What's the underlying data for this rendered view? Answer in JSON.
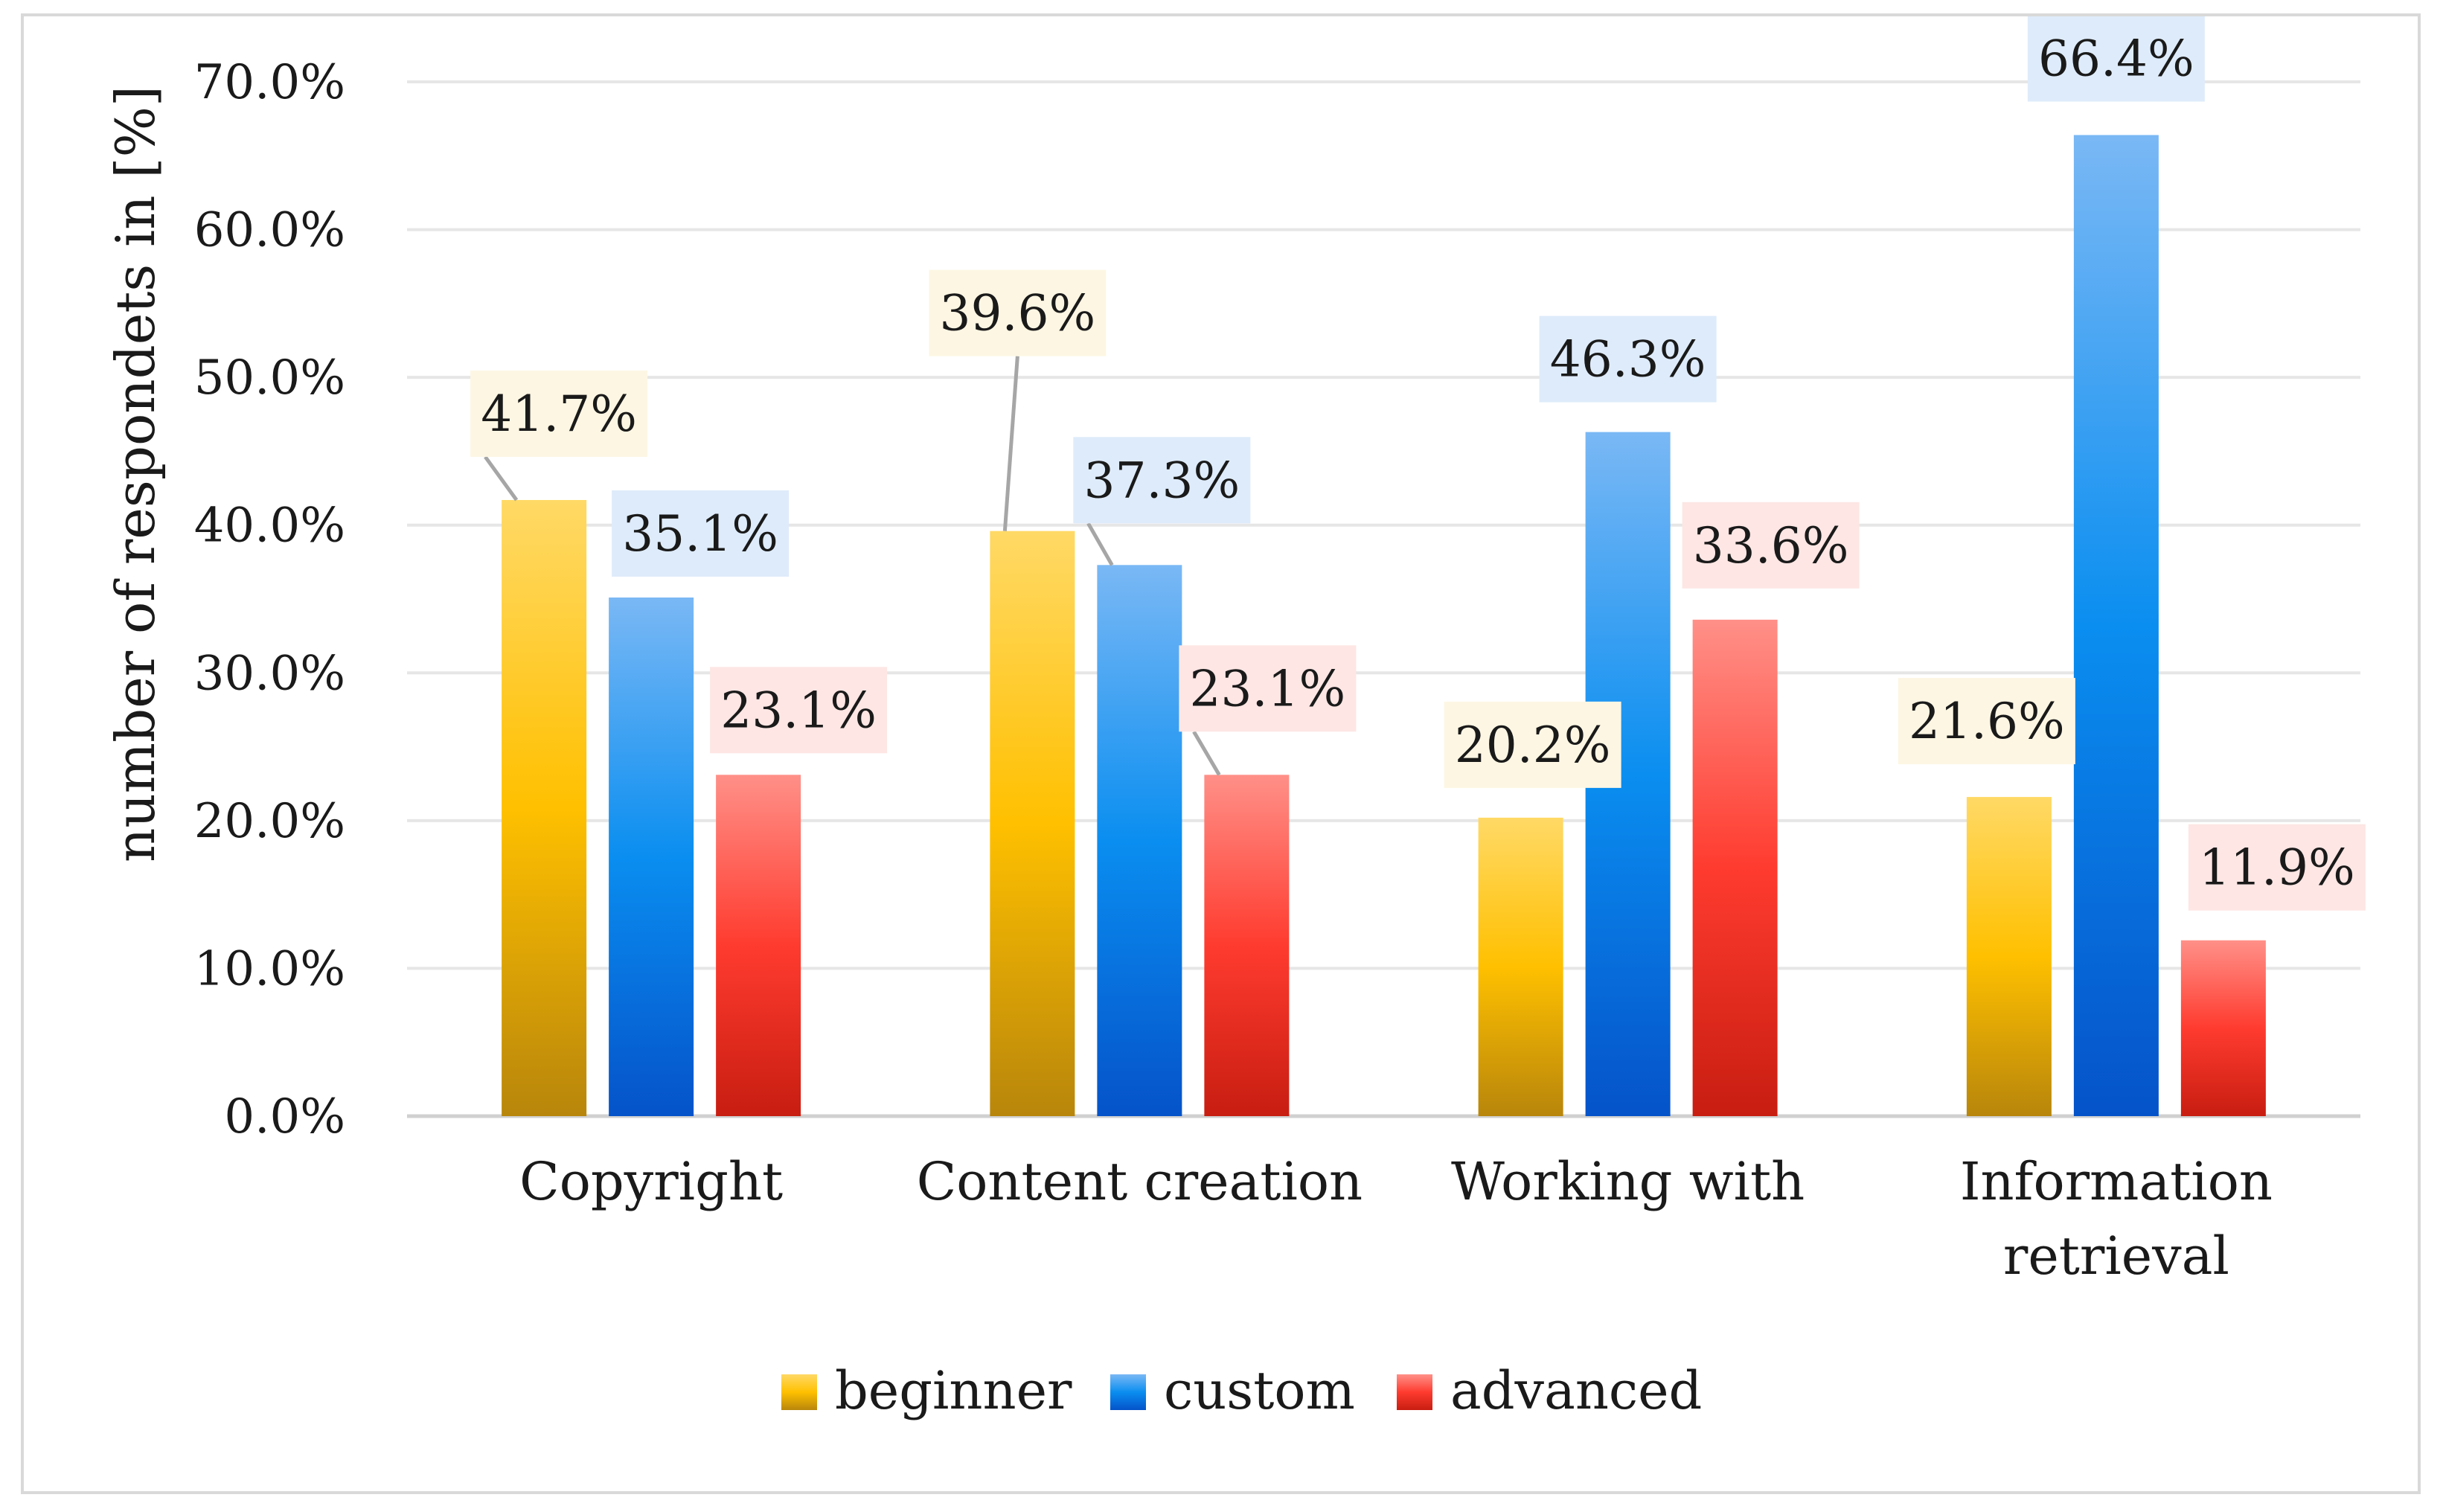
{
  "chart_data": {
    "type": "bar",
    "title": "",
    "xlabel": "",
    "ylabel": "number of respondets in [%]",
    "ylim": [
      0,
      70
    ],
    "ytick_step": 10,
    "ytick_labels": [
      "0.0%",
      "10.0%",
      "20.0%",
      "30.0%",
      "40.0%",
      "50.0%",
      "60.0%",
      "70.0%"
    ],
    "grid": true,
    "legend_position": "bottom",
    "categories": [
      [
        "Copyright"
      ],
      [
        "Content creation"
      ],
      [
        "Working with"
      ],
      [
        "Information",
        "retrieval"
      ]
    ],
    "series": [
      {
        "name": "beginner",
        "values": [
          41.7,
          39.6,
          20.2,
          21.6
        ],
        "labels": [
          "41.7%",
          "39.6%",
          "20.2%",
          "21.6%"
        ],
        "color_top": "#ffd966",
        "color_mid": "#ffc000",
        "color_bottom": "#b8860b",
        "label_bg": "#fdf6e3"
      },
      {
        "name": "custom",
        "values": [
          35.1,
          37.3,
          46.3,
          66.4
        ],
        "labels": [
          "35.1%",
          "37.3%",
          "46.3%",
          "66.4%"
        ],
        "color_top": "#7ab8f5",
        "color_mid": "#0a8ef0",
        "color_bottom": "#0553c9",
        "label_bg": "#deebfa"
      },
      {
        "name": "advanced",
        "values": [
          23.1,
          23.1,
          33.6,
          11.9
        ],
        "labels": [
          "23.1%",
          "23.1%",
          "33.6%",
          "11.9%"
        ],
        "color_top": "#ff9088",
        "color_mid": "#ff3b2f",
        "color_bottom": "#c81d11",
        "label_bg": "#fde6e4"
      }
    ],
    "gridline_color": "#e6e6e6",
    "axis_color": "#d0d0d0",
    "leader_color": "#a6a6a6"
  }
}
